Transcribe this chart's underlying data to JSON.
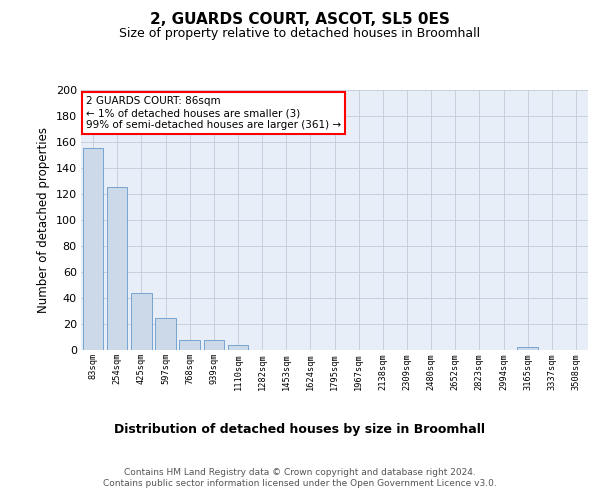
{
  "title": "2, GUARDS COURT, ASCOT, SL5 0ES",
  "subtitle": "Size of property relative to detached houses in Broomhall",
  "xlabel": "Distribution of detached houses by size in Broomhall",
  "ylabel": "Number of detached properties",
  "bar_color": "#ccd9e8",
  "bar_edge_color": "#6699cc",
  "background_color": "#e8eef8",
  "annotation_text": "2 GUARDS COURT: 86sqm\n← 1% of detached houses are smaller (3)\n99% of semi-detached houses are larger (361) →",
  "annotation_box_color": "white",
  "annotation_box_edge": "red",
  "footer": "Contains HM Land Registry data © Crown copyright and database right 2024.\nContains public sector information licensed under the Open Government Licence v3.0.",
  "bin_labels": [
    "83sqm",
    "254sqm",
    "425sqm",
    "597sqm",
    "768sqm",
    "939sqm",
    "1110sqm",
    "1282sqm",
    "1453sqm",
    "1624sqm",
    "1795sqm",
    "1967sqm",
    "2138sqm",
    "2309sqm",
    "2480sqm",
    "2652sqm",
    "2823sqm",
    "2994sqm",
    "3165sqm",
    "3337sqm",
    "3508sqm"
  ],
  "bar_heights": [
    155,
    125,
    44,
    25,
    8,
    8,
    4,
    0,
    0,
    0,
    0,
    0,
    0,
    0,
    0,
    0,
    0,
    0,
    2,
    0,
    0
  ],
  "ylim": [
    0,
    200
  ],
  "yticks": [
    0,
    20,
    40,
    60,
    80,
    100,
    120,
    140,
    160,
    180,
    200
  ],
  "grid_color": "#c0ccd8",
  "title_fontsize": 11,
  "subtitle_fontsize": 9
}
